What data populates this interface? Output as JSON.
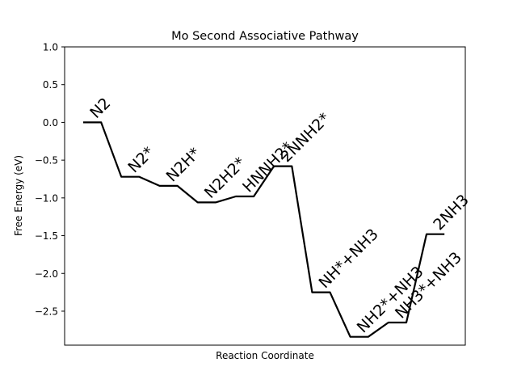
{
  "chart_data": {
    "type": "line",
    "title": "Mo Second Associative Pathway",
    "xlabel": "Reaction Coordinate",
    "ylabel": "Free Energy (eV)",
    "ylim": [
      -2.95,
      1.0
    ],
    "yticks": [
      1.0,
      0.5,
      0.0,
      -0.5,
      -1.0,
      -1.5,
      -2.0,
      -2.5
    ],
    "ytick_labels": [
      "1.0",
      "0.5",
      "0.0",
      "−0.5",
      "−1.0",
      "−1.5",
      "−2.0",
      "−2.5"
    ],
    "grid": false,
    "series": [
      {
        "color": "#000000",
        "steps": [
          {
            "label": "N2",
            "value": 0.0
          },
          {
            "label": "N2*",
            "value": -0.72
          },
          {
            "label": "N2H*",
            "value": -0.84
          },
          {
            "label": "N2H2*",
            "value": -1.06
          },
          {
            "label": "HNNH2*",
            "value": -0.98
          },
          {
            "label": "2NNH2*",
            "value": -0.58
          },
          {
            "label": "NH*+NH3",
            "value": -2.25
          },
          {
            "label": "NH2*+NH3",
            "value": -2.84
          },
          {
            "label": "NH3*+NH3",
            "value": -2.65
          },
          {
            "label": "2NH3",
            "value": -1.48
          }
        ]
      }
    ]
  }
}
